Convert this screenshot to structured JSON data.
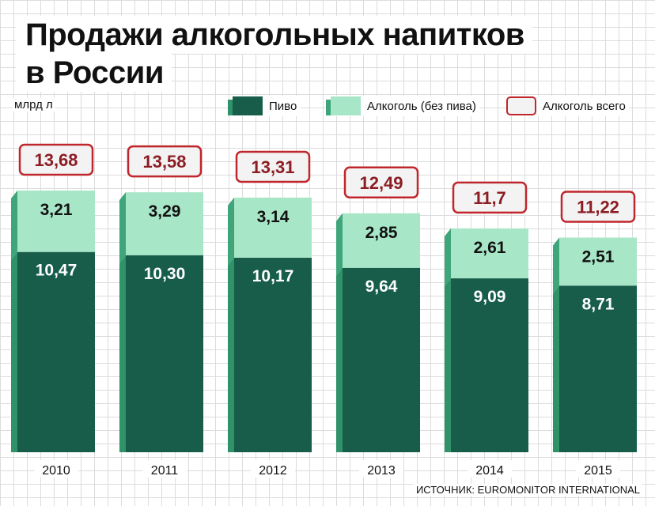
{
  "title": {
    "line1": "Продажи алкогольных напитков",
    "line2": "в России"
  },
  "unit_label": "млрд л",
  "legend": {
    "beer": "Пиво",
    "alcohol": "Алкоголь (без пива)",
    "total": "Алкоголь всего"
  },
  "source": "ИСТОЧНИК: EUROMONITOR INTERNATIONAL",
  "colors": {
    "beer": "#175d4a",
    "beer_side": "#2f9268",
    "alcohol": "#a8e6c8",
    "alcohol_side": "#3fa57a",
    "total_border": "#c0272d",
    "total_text": "#8c1d23",
    "total_fill": "#f3f3f3"
  },
  "chart_data": {
    "type": "bar",
    "stacked": true,
    "categories": [
      "2010",
      "2011",
      "2012",
      "2013",
      "2014",
      "2015"
    ],
    "series": [
      {
        "name": "Пиво",
        "values": [
          10.47,
          10.3,
          10.17,
          9.64,
          9.09,
          8.71
        ]
      },
      {
        "name": "Алкоголь (без пива)",
        "values": [
          3.21,
          3.29,
          3.14,
          2.85,
          2.61,
          2.51
        ]
      }
    ],
    "value_labels": {
      "beer": [
        "10,47",
        "10,30",
        "10,17",
        "9,64",
        "9,09",
        "8,71"
      ],
      "alcohol": [
        "3,21",
        "3,29",
        "3,14",
        "2,85",
        "2,61",
        "2,51"
      ]
    },
    "totals": {
      "name": "Алкоголь всего",
      "values": [
        13.68,
        13.58,
        13.31,
        12.49,
        11.7,
        11.22
      ],
      "labels": [
        "13,68",
        "13,58",
        "13,31",
        "12,49",
        "11,7",
        "11,22"
      ]
    },
    "ylabel": "млрд л",
    "ylim": [
      0,
      13.68
    ],
    "grid": true,
    "legend_position": "top"
  }
}
